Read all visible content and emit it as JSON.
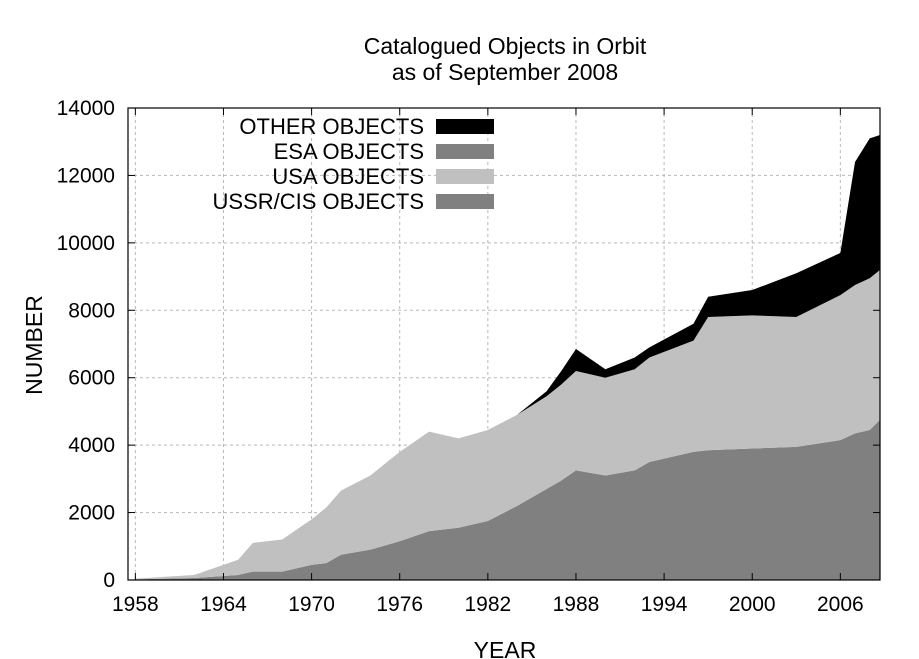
{
  "chart_data": {
    "type": "area",
    "stacked": true,
    "title": [
      "Catalogued Objects in Orbit",
      "as of September 2008"
    ],
    "xlabel": "YEAR",
    "ylabel": "NUMBER",
    "xlim": [
      1957.5,
      2008.7
    ],
    "ylim": [
      0,
      14000
    ],
    "xticks": [
      1958,
      1964,
      1970,
      1976,
      1982,
      1988,
      1994,
      2000,
      2006
    ],
    "yticks": [
      0,
      2000,
      4000,
      6000,
      8000,
      10000,
      12000,
      14000
    ],
    "grid": true,
    "legend_position": "top-left",
    "x": [
      1958,
      1962,
      1965,
      1966,
      1968,
      1969,
      1970,
      1971,
      1972,
      1974,
      1976,
      1978,
      1980,
      1982,
      1984,
      1986,
      1987,
      1988,
      1990,
      1992,
      1993,
      1996,
      1997,
      2000,
      2003,
      2006,
      2007,
      2008,
      2008.7
    ],
    "totals": [
      40,
      150,
      600,
      1100,
      1200,
      1500,
      1800,
      2150,
      2650,
      3100,
      3800,
      4400,
      4200,
      4450,
      4900,
      5600,
      6200,
      6850,
      6250,
      6600,
      6900,
      7600,
      8400,
      8600,
      9100,
      9700,
      12400,
      13100,
      13200
    ],
    "series": [
      {
        "name": "USSR/CIS OBJECTS",
        "color": "#808080",
        "values": [
          20,
          60,
          150,
          250,
          250,
          350,
          450,
          500,
          750,
          900,
          1150,
          1450,
          1550,
          1750,
          2200,
          2700,
          2950,
          3250,
          3100,
          3250,
          3500,
          3800,
          3850,
          3900,
          3950,
          4150,
          4350,
          4450,
          4750
        ]
      },
      {
        "name": "USA OBJECTS",
        "color": "#c0c0c0",
        "values": [
          20,
          90,
          450,
          850,
          950,
          1150,
          1350,
          1650,
          1900,
          2200,
          2650,
          2950,
          2650,
          2700,
          2700,
          2750,
          2850,
          2950,
          2900,
          3000,
          3100,
          3300,
          3950,
          3950,
          3850,
          4300,
          4400,
          4500,
          4450
        ]
      },
      {
        "name": "ESA OBJECTS",
        "color": "#808080",
        "values": [
          0,
          0,
          0,
          0,
          0,
          0,
          0,
          0,
          0,
          0,
          0,
          0,
          0,
          0,
          0,
          0,
          0,
          0,
          0,
          0,
          0,
          0,
          0,
          0,
          0,
          0,
          0,
          0,
          0
        ]
      },
      {
        "name": "OTHER OBJECTS",
        "color": "#000000",
        "values": [
          0,
          0,
          0,
          0,
          0,
          0,
          0,
          0,
          0,
          0,
          0,
          0,
          0,
          0,
          0,
          150,
          400,
          650,
          250,
          350,
          300,
          500,
          600,
          750,
          1300,
          1250,
          3650,
          4150,
          4000
        ]
      }
    ],
    "legend_order": [
      "OTHER OBJECTS",
      "ESA OBJECTS",
      "USA OBJECTS",
      "USSR/CIS OBJECTS"
    ]
  }
}
